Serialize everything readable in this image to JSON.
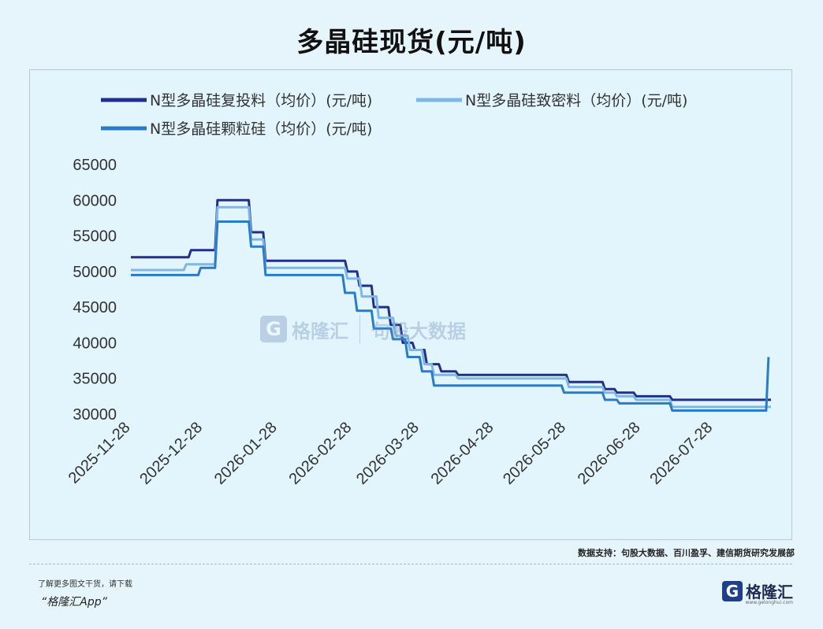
{
  "title": "多晶硅现货(元/吨)",
  "source": "数据支持：句股大数据、百川盈孚、建信期货研究发展部",
  "footer": {
    "note": "了解更多图文干货，请下载",
    "app": "“格隆汇App”",
    "logo_mark": "G",
    "logo_text": "格隆汇",
    "logo_sub": "www.gelonghui.com"
  },
  "watermark": {
    "mark": "G",
    "text": "格隆汇",
    "text2": "句股大数据"
  },
  "chart_data": {
    "type": "line",
    "title": "多晶硅现货(元/吨)",
    "xlabel": "",
    "ylabel": "",
    "x_start": "2025-11-28",
    "x_end": "2026-08-21",
    "ylim": [
      30000,
      65000
    ],
    "yticks": [
      65000,
      60000,
      55000,
      50000,
      45000,
      40000,
      35000,
      30000
    ],
    "xticks": [
      "2025-11-28",
      "2025-12-28",
      "2026-01-28",
      "2026-02-28",
      "2026-03-28",
      "2026-04-28",
      "2026-05-28",
      "2026-06-28",
      "2026-07-28"
    ],
    "grid": false,
    "legend_position": "top",
    "series": [
      {
        "name": "N型多晶硅复投料（均价）(元/吨)",
        "color": "#1f2f8a",
        "points": [
          [
            "2025-11-28",
            52000
          ],
          [
            "2025-12-22",
            52000
          ],
          [
            "2025-12-23",
            53000
          ],
          [
            "2026-01-02",
            53000
          ],
          [
            "2026-01-03",
            60000
          ],
          [
            "2026-01-16",
            60000
          ],
          [
            "2026-01-17",
            55500
          ],
          [
            "2026-01-22",
            55500
          ],
          [
            "2026-01-23",
            51500
          ],
          [
            "2026-02-25",
            51500
          ],
          [
            "2026-02-26",
            50000
          ],
          [
            "2026-03-02",
            50000
          ],
          [
            "2026-03-03",
            48000
          ],
          [
            "2026-03-08",
            48000
          ],
          [
            "2026-03-09",
            45000
          ],
          [
            "2026-03-15",
            45000
          ],
          [
            "2026-03-16",
            42500
          ],
          [
            "2026-03-20",
            42500
          ],
          [
            "2026-03-21",
            40000
          ],
          [
            "2026-03-25",
            40000
          ],
          [
            "2026-03-26",
            39000
          ],
          [
            "2026-03-30",
            39000
          ],
          [
            "2026-03-31",
            37000
          ],
          [
            "2026-04-05",
            37000
          ],
          [
            "2026-04-06",
            36000
          ],
          [
            "2026-04-12",
            36000
          ],
          [
            "2026-04-13",
            35500
          ],
          [
            "2026-05-28",
            35500
          ],
          [
            "2026-05-29",
            34500
          ],
          [
            "2026-06-12",
            34500
          ],
          [
            "2026-06-13",
            33500
          ],
          [
            "2026-06-17",
            33500
          ],
          [
            "2026-06-18",
            33000
          ],
          [
            "2026-06-25",
            33000
          ],
          [
            "2026-06-26",
            32500
          ],
          [
            "2026-07-10",
            32500
          ],
          [
            "2026-07-11",
            32000
          ],
          [
            "2026-08-21",
            32000
          ]
        ]
      },
      {
        "name": "N型多晶硅致密料（均价）(元/吨)",
        "color": "#7fb6e4",
        "points": [
          [
            "2025-11-28",
            50200
          ],
          [
            "2025-12-20",
            50200
          ],
          [
            "2025-12-21",
            51000
          ],
          [
            "2026-01-02",
            51000
          ],
          [
            "2026-01-03",
            59000
          ],
          [
            "2026-01-16",
            59000
          ],
          [
            "2026-01-17",
            54500
          ],
          [
            "2026-01-22",
            54500
          ],
          [
            "2026-01-23",
            50500
          ],
          [
            "2026-02-25",
            50500
          ],
          [
            "2026-02-26",
            49000
          ],
          [
            "2026-03-03",
            49000
          ],
          [
            "2026-03-04",
            46500
          ],
          [
            "2026-03-10",
            46500
          ],
          [
            "2026-03-11",
            43500
          ],
          [
            "2026-03-17",
            43500
          ],
          [
            "2026-03-18",
            41000
          ],
          [
            "2026-03-23",
            41000
          ],
          [
            "2026-03-24",
            39000
          ],
          [
            "2026-03-29",
            39000
          ],
          [
            "2026-03-30",
            37000
          ],
          [
            "2026-04-02",
            37000
          ],
          [
            "2026-04-03",
            35500
          ],
          [
            "2026-04-12",
            35500
          ],
          [
            "2026-04-13",
            35000
          ],
          [
            "2026-05-28",
            35000
          ],
          [
            "2026-05-29",
            33800
          ],
          [
            "2026-06-12",
            33800
          ],
          [
            "2026-06-13",
            33000
          ],
          [
            "2026-06-17",
            33000
          ],
          [
            "2026-06-18",
            32500
          ],
          [
            "2026-06-25",
            32500
          ],
          [
            "2026-06-26",
            32000
          ],
          [
            "2026-07-10",
            32000
          ],
          [
            "2026-07-11",
            31000
          ],
          [
            "2026-08-21",
            31000
          ]
        ]
      },
      {
        "name": "N型多晶硅颗粒硅（均价）(元/吨)",
        "color": "#2a7cc7",
        "points": [
          [
            "2025-11-28",
            49500
          ],
          [
            "2025-12-26",
            49500
          ],
          [
            "2025-12-27",
            50500
          ],
          [
            "2026-01-02",
            50500
          ],
          [
            "2026-01-03",
            57000
          ],
          [
            "2026-01-16",
            57000
          ],
          [
            "2026-01-17",
            53500
          ],
          [
            "2026-01-22",
            53500
          ],
          [
            "2026-01-23",
            49500
          ],
          [
            "2026-02-24",
            49500
          ],
          [
            "2026-02-25",
            47000
          ],
          [
            "2026-03-01",
            47000
          ],
          [
            "2026-03-02",
            44500
          ],
          [
            "2026-03-08",
            44500
          ],
          [
            "2026-03-09",
            42000
          ],
          [
            "2026-03-16",
            42000
          ],
          [
            "2026-03-17",
            40500
          ],
          [
            "2026-03-22",
            40500
          ],
          [
            "2026-03-23",
            38000
          ],
          [
            "2026-03-28",
            38000
          ],
          [
            "2026-03-29",
            36000
          ],
          [
            "2026-04-02",
            36000
          ],
          [
            "2026-04-03",
            34000
          ],
          [
            "2026-05-26",
            34000
          ],
          [
            "2026-05-27",
            33000
          ],
          [
            "2026-06-12",
            33000
          ],
          [
            "2026-06-13",
            32000
          ],
          [
            "2026-06-18",
            32000
          ],
          [
            "2026-06-19",
            31500
          ],
          [
            "2026-07-10",
            31500
          ],
          [
            "2026-07-11",
            30500
          ],
          [
            "2026-08-19",
            30500
          ],
          [
            "2026-08-20",
            38000
          ]
        ]
      }
    ]
  }
}
